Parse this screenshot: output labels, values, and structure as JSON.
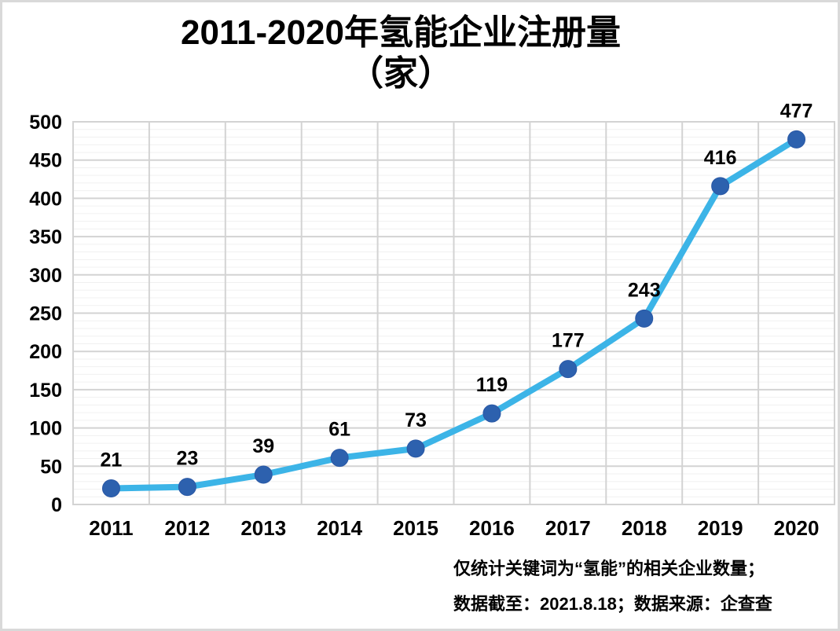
{
  "title": {
    "line1": "2011-2020年氢能企业注册量",
    "line2": "（家）"
  },
  "footer": {
    "line1": "仅统计关键词为“氢能”的相关企业数量；",
    "line2": "数据截至：2021.8.18；数据来源：企查查"
  },
  "chart_data": {
    "type": "line",
    "title": "2011-2020年氢能企业注册量（家）",
    "categories": [
      "2011",
      "2012",
      "2013",
      "2014",
      "2015",
      "2016",
      "2017",
      "2018",
      "2019",
      "2020"
    ],
    "values": [
      21,
      23,
      39,
      61,
      73,
      119,
      177,
      243,
      416,
      477
    ],
    "xlabel": "",
    "ylabel": "",
    "ylim": [
      0,
      500
    ],
    "y_tick_step": 50,
    "y_minor_step": 10,
    "grid": true,
    "legend": "none",
    "data_labels_visible": true,
    "colors": {
      "line": "#3cb4e7",
      "marker": "#2d61ae",
      "marker_edge": "#2a58a5",
      "grid_major": "#d3d3d3",
      "grid_minor": "#f0f0f0",
      "text": "#000000",
      "frame": "#d9d9d9"
    }
  }
}
